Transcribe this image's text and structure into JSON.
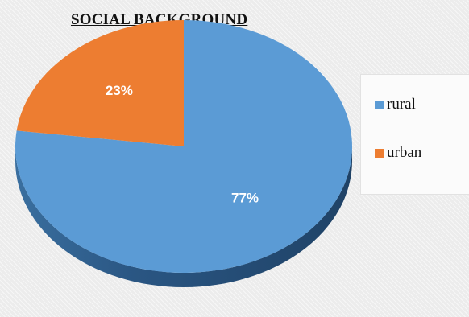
{
  "chart_data": {
    "type": "pie",
    "title": "SOCIAL BACKGROUND",
    "slices": [
      {
        "label": "rural",
        "value": 77,
        "display": "77%",
        "color": "#5b9bd5"
      },
      {
        "label": "urban",
        "value": 23,
        "display": "23%",
        "color": "#ed7d31"
      }
    ],
    "legend_position": "right",
    "style": "3d-pie"
  }
}
